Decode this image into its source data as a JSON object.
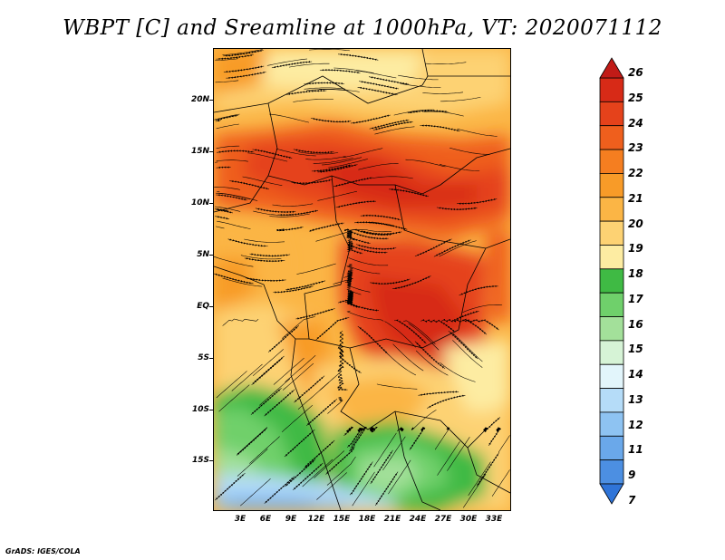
{
  "title": "WBPT [C] and Sreamline at 1000hPa, VT: 2020071112",
  "footer": "GrADS: IGES/COLA",
  "map": {
    "variable": "Wet-bulb potential temperature with streamlines",
    "level": "1000hPa",
    "valid_time": "2020071112",
    "lat_labels": [
      "20N",
      "15N",
      "10N",
      "5N",
      "EQ",
      "5S",
      "10S",
      "15S"
    ],
    "lon_labels": [
      "3E",
      "6E",
      "9E",
      "12E",
      "15E",
      "18E",
      "21E",
      "24E",
      "27E",
      "30E",
      "33E"
    ]
  },
  "colorbar": {
    "labels": [
      "26",
      "25",
      "24",
      "23",
      "22",
      "21",
      "20",
      "19",
      "18",
      "17",
      "16",
      "15",
      "14",
      "13",
      "12",
      "11",
      "9",
      "7"
    ],
    "colors": [
      "#c11b17",
      "#d72a17",
      "#e5421b",
      "#ef5f1d",
      "#f57e20",
      "#f89b28",
      "#fbb545",
      "#fdd273",
      "#fdeca2",
      "#3fba44",
      "#6fd06b",
      "#a3e09a",
      "#d6f3d6",
      "#e2f5fb",
      "#b5dcf8",
      "#8ec3f2",
      "#6aa8ea",
      "#4c8fe2",
      "#2f74d8"
    ]
  }
}
